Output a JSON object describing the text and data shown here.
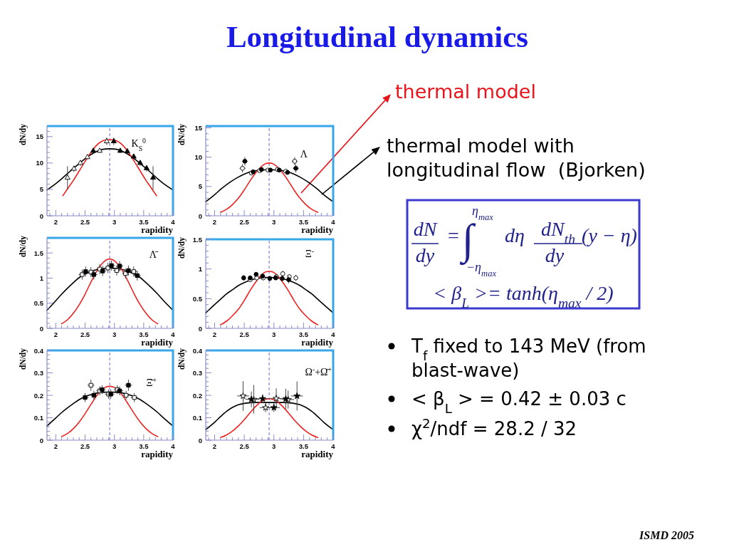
{
  "chart_data": [
    {
      "type": "other",
      "title": "Longitudinal dynamics",
      "annotations": [
        "thermal model",
        "thermal model with longitudinal flow  (Bjorken)",
        "dN",
        "dy",
        "=",
        "∫",
        "η$_{max}$",
        "−η$_{max}$",
        "dη",
        "dN$_{th}$",
        "dy",
        "(y − η)",
        "< β$_{L}$ >= tanh(η$_{max}$ / 2)",
        "T$_{f}$ fixed to 143 MeV (from blast-wave)",
        "< β$_{L}$ > = 0.42 ± 0.03 c",
        "χ$^{2}$/ndf = 28.2 / 32",
        "ISMD 2005"
      ]
    },
    {
      "type": "scatter",
      "annotations": [
        "K$_{S}$$^{0}$"
      ],
      "xlabel": "rapidity",
      "ylabel": "dN/dy",
      "xlim": [
        1.85,
        4
      ],
      "ylim": [
        0,
        17
      ],
      "xticks": [
        {
          "value": 1.9,
          "label": null
        },
        2,
        {
          "value": 2.1,
          "label": null
        },
        {
          "value": 2.2,
          "label": null
        },
        {
          "value": 2.3,
          "label": null
        },
        {
          "value": 2.4,
          "label": null
        },
        2.5,
        {
          "value": 2.6,
          "label": null
        },
        {
          "value": 2.7,
          "label": null
        },
        {
          "value": 2.8,
          "label": null
        },
        {
          "value": 2.9,
          "label": null
        },
        3,
        {
          "value": 3.1,
          "label": null
        },
        {
          "value": 3.2,
          "label": null
        },
        {
          "value": 3.3,
          "label": null
        },
        {
          "value": 3.4,
          "label": null
        },
        3.5,
        {
          "value": 3.6,
          "label": null
        },
        {
          "value": 3.7,
          "label": null
        },
        {
          "value": 3.8,
          "label": null
        },
        {
          "value": 3.9,
          "label": null
        },
        4
      ],
      "yticks": [
        0,
        {
          "value": 1,
          "label": null
        },
        {
          "value": 2,
          "label": null
        },
        {
          "value": 3,
          "label": null
        },
        {
          "value": 4,
          "label": null
        },
        5,
        {
          "value": 6,
          "label": null
        },
        {
          "value": 7,
          "label": null
        },
        {
          "value": 8,
          "label": null
        },
        {
          "value": 9,
          "label": null
        },
        10,
        {
          "value": 11,
          "label": null
        },
        {
          "value": 12,
          "label": null
        },
        {
          "value": 13,
          "label": null
        },
        {
          "value": 14,
          "label": null
        },
        15,
        {
          "value": 16,
          "label": null
        }
      ],
      "ref_lines": [
        {
          "axis": "x",
          "value": 2.92,
          "color": "#6666dd",
          "line_style": "dashed"
        }
      ],
      "series": [
        {
          "type": "line",
          "color": "#000000",
          "x": [
            1.85,
            2,
            2.1,
            2.2,
            2.3,
            2.4,
            2.5,
            2.6,
            2.7,
            2.8,
            2.92,
            3.04,
            3.14,
            3.24,
            3.34,
            3.44,
            3.54,
            3.64,
            3.74,
            3.84,
            4
          ],
          "values": [
            4.9,
            6.1,
            7.0,
            8.0,
            9.0,
            9.9,
            10.8,
            11.6,
            12.2,
            12.6,
            12.7,
            12.6,
            12.2,
            11.6,
            10.8,
            9.9,
            9.0,
            8.0,
            7.0,
            6.1,
            4.9
          ]
        },
        {
          "type": "line",
          "color": "#ee2222",
          "x": [
            2.12,
            2.2,
            2.3,
            2.4,
            2.5,
            2.6,
            2.7,
            2.8,
            2.86,
            2.92,
            2.98,
            3.04,
            3.14,
            3.24,
            3.34,
            3.44,
            3.54,
            3.64,
            3.72
          ],
          "values": [
            3.8,
            5.1,
            6.7,
            8.5,
            10.3,
            12.0,
            13.4,
            14.2,
            14.4,
            14.4,
            14.4,
            14.2,
            13.4,
            12.0,
            10.3,
            8.5,
            6.7,
            5.1,
            3.8
          ]
        },
        {
          "type": "scatter",
          "marker": "triangle",
          "color": "#ffffff",
          "x": [
            2.2,
            2.31,
            2.42,
            2.54,
            2.75,
            2.87
          ],
          "values": [
            7.2,
            8.9,
            10.0,
            11.1,
            12.3,
            14.1
          ],
          "errors": [
            2.2,
            0.6,
            0.5,
            0.4,
            0.4,
            0.7
          ]
        },
        {
          "type": "scatter",
          "marker": "triangle",
          "color": "#000000",
          "x": [
            2.64,
            2.99,
            3.1,
            3.22,
            3.33,
            3.44,
            3.55,
            3.66
          ],
          "values": [
            12.3,
            14.1,
            12.3,
            12.2,
            11.2,
            10.0,
            9.0,
            7.2
          ],
          "errors": [
            0.4,
            0.7,
            0.4,
            0.4,
            0.4,
            0.5,
            0.6,
            2.2
          ]
        }
      ]
    },
    {
      "type": "scatter",
      "annotations": [
        "Λ"
      ],
      "xlabel": "rapidity",
      "ylabel": "dN/dy",
      "xlim": [
        1.85,
        4
      ],
      "ylim": [
        0,
        15.3
      ],
      "xticks": [
        {
          "value": 1.9,
          "label": null
        },
        2,
        {
          "value": 2.1,
          "label": null
        },
        {
          "value": 2.2,
          "label": null
        },
        {
          "value": 2.3,
          "label": null
        },
        {
          "value": 2.4,
          "label": null
        },
        2.5,
        {
          "value": 2.6,
          "label": null
        },
        {
          "value": 2.7,
          "label": null
        },
        {
          "value": 2.8,
          "label": null
        },
        {
          "value": 2.9,
          "label": null
        },
        3,
        {
          "value": 3.1,
          "label": null
        },
        {
          "value": 3.2,
          "label": null
        },
        {
          "value": 3.3,
          "label": null
        },
        {
          "value": 3.4,
          "label": null
        },
        3.5,
        {
          "value": 3.6,
          "label": null
        },
        {
          "value": 3.7,
          "label": null
        },
        {
          "value": 3.8,
          "label": null
        },
        {
          "value": 3.9,
          "label": null
        },
        4
      ],
      "yticks": [
        0,
        {
          "value": 1,
          "label": null
        },
        {
          "value": 2,
          "label": null
        },
        {
          "value": 3,
          "label": null
        },
        {
          "value": 4,
          "label": null
        },
        5,
        {
          "value": 6,
          "label": null
        },
        {
          "value": 7,
          "label": null
        },
        {
          "value": 8,
          "label": null
        },
        {
          "value": 9,
          "label": null
        },
        10,
        {
          "value": 11,
          "label": null
        },
        {
          "value": 12,
          "label": null
        },
        {
          "value": 13,
          "label": null
        },
        {
          "value": 14,
          "label": null
        },
        15
      ],
      "ref_lines": [
        {
          "axis": "x",
          "value": 2.92,
          "color": "#6666dd",
          "line_style": "dashed"
        }
      ],
      "series": [
        {
          "type": "line",
          "color": "#000000",
          "x": [
            1.85,
            2,
            2.1,
            2.2,
            2.3,
            2.4,
            2.5,
            2.6,
            2.7,
            2.8,
            2.92,
            3.04,
            3.14,
            3.24,
            3.34,
            3.44,
            3.54,
            3.64,
            3.74,
            3.84,
            4
          ],
          "values": [
            2.4,
            3.6,
            4.5,
            5.3,
            6.0,
            6.6,
            7.1,
            7.5,
            7.7,
            7.8,
            7.9,
            7.8,
            7.7,
            7.5,
            7.1,
            6.6,
            6.0,
            5.3,
            4.5,
            3.6,
            2.4
          ]
        },
        {
          "type": "line",
          "color": "#ee2222",
          "x": [
            2.1,
            2.2,
            2.3,
            2.4,
            2.5,
            2.6,
            2.7,
            2.8,
            2.86,
            2.92,
            2.98,
            3.04,
            3.14,
            3.24,
            3.34,
            3.44,
            3.54,
            3.64,
            3.74
          ],
          "values": [
            0.6,
            1.1,
            1.9,
            3.0,
            4.4,
            6.0,
            7.4,
            8.5,
            8.9,
            9.0,
            8.9,
            8.5,
            7.4,
            6.0,
            4.4,
            3.0,
            1.9,
            1.1,
            0.6
          ]
        },
        {
          "type": "scatter",
          "marker": "circle",
          "color": "#ffffff",
          "x": [
            2.47,
            2.62,
            2.76,
            2.9,
            3.06,
            3.2,
            3.35
          ],
          "values": [
            8.1,
            7.3,
            7.7,
            7.8,
            7.9,
            7.6,
            9.3
          ],
          "errors": [
            0.7,
            0.3,
            0.3,
            0.3,
            0.3,
            0.3,
            0.7
          ],
          "xerrors": [
            0.05,
            null,
            null,
            null,
            null,
            null,
            0.05
          ]
        },
        {
          "type": "scatter",
          "marker": "circle",
          "color": "#000000",
          "x": [
            2.51,
            2.65,
            2.79,
            2.94,
            3.09,
            3.23,
            3.37
          ],
          "values": [
            9.3,
            7.5,
            7.9,
            7.8,
            7.8,
            7.4,
            8.1
          ],
          "errors": [
            0.7,
            0.3,
            0.3,
            0.3,
            0.3,
            0.3,
            0.7
          ],
          "xerrors": [
            0.05,
            null,
            null,
            null,
            null,
            null,
            0.05
          ]
        }
      ]
    },
    {
      "type": "scatter",
      "annotations": [
        "Λ̄"
      ],
      "xlabel": "rapidity",
      "ylabel": "dN/dy",
      "xlim": [
        1.85,
        4
      ],
      "ylim": [
        0,
        1.8
      ],
      "xticks": [
        {
          "value": 1.9,
          "label": null
        },
        2,
        {
          "value": 2.1,
          "label": null
        },
        {
          "value": 2.2,
          "label": null
        },
        {
          "value": 2.3,
          "label": null
        },
        {
          "value": 2.4,
          "label": null
        },
        2.5,
        {
          "value": 2.6,
          "label": null
        },
        {
          "value": 2.7,
          "label": null
        },
        {
          "value": 2.8,
          "label": null
        },
        {
          "value": 2.9,
          "label": null
        },
        3,
        {
          "value": 3.1,
          "label": null
        },
        {
          "value": 3.2,
          "label": null
        },
        {
          "value": 3.3,
          "label": null
        },
        {
          "value": 3.4,
          "label": null
        },
        3.5,
        {
          "value": 3.6,
          "label": null
        },
        {
          "value": 3.7,
          "label": null
        },
        {
          "value": 3.8,
          "label": null
        },
        {
          "value": 3.9,
          "label": null
        },
        4
      ],
      "yticks": [
        0,
        {
          "value": 0.1,
          "label": null
        },
        {
          "value": 0.2,
          "label": null
        },
        {
          "value": 0.3,
          "label": null
        },
        {
          "value": 0.4,
          "label": null
        },
        0.5,
        {
          "value": 0.6,
          "label": null
        },
        {
          "value": 0.7,
          "label": null
        },
        {
          "value": 0.8,
          "label": null
        },
        {
          "value": 0.9,
          "label": null
        },
        1,
        {
          "value": 1.1,
          "label": null
        },
        {
          "value": 1.2,
          "label": null
        },
        {
          "value": 1.3,
          "label": null
        },
        {
          "value": 1.4,
          "label": null
        },
        1.5,
        {
          "value": 1.6,
          "label": null
        },
        {
          "value": 1.7,
          "label": null
        }
      ],
      "ref_lines": [
        {
          "axis": "x",
          "value": 2.92,
          "color": "#6666dd",
          "line_style": "dashed"
        }
      ],
      "series": [
        {
          "type": "line",
          "color": "#000000",
          "x": [
            1.85,
            2,
            2.1,
            2.2,
            2.3,
            2.4,
            2.5,
            2.6,
            2.7,
            2.8,
            2.92,
            3.04,
            3.14,
            3.24,
            3.34,
            3.44,
            3.54,
            3.64,
            3.74,
            3.84,
            4
          ],
          "values": [
            0.36,
            0.55,
            0.68,
            0.8,
            0.91,
            1.01,
            1.08,
            1.13,
            1.17,
            1.19,
            1.2,
            1.19,
            1.17,
            1.13,
            1.08,
            1.01,
            0.91,
            0.8,
            0.68,
            0.55,
            0.36
          ]
        },
        {
          "type": "line",
          "color": "#ee2222",
          "x": [
            2.1,
            2.2,
            2.3,
            2.4,
            2.5,
            2.6,
            2.7,
            2.8,
            2.86,
            2.92,
            2.98,
            3.04,
            3.14,
            3.24,
            3.34,
            3.44,
            3.54,
            3.64,
            3.74
          ],
          "values": [
            0.09,
            0.17,
            0.3,
            0.47,
            0.68,
            0.92,
            1.14,
            1.3,
            1.36,
            1.38,
            1.36,
            1.3,
            1.14,
            0.92,
            0.68,
            0.47,
            0.3,
            0.17,
            0.09
          ]
        },
        {
          "type": "scatter",
          "marker": "square",
          "color": "#ffffff",
          "x": [
            2.45,
            2.6,
            2.75,
            2.89,
            3.04,
            3.19,
            3.33
          ],
          "values": [
            1.07,
            1.12,
            1.18,
            1.2,
            1.15,
            1.09,
            1.13
          ],
          "errors": [
            0.1,
            0.1,
            0.1,
            0.1,
            0.1,
            0.1,
            0.1
          ],
          "xerrors": [
            0.06,
            0.06,
            0.06,
            0.06,
            0.06,
            0.06,
            0.06
          ]
        },
        {
          "type": "scatter",
          "marker": "square",
          "color": "#000000",
          "x": [
            2.51,
            2.65,
            2.8,
            2.95,
            3.09,
            3.24,
            3.39
          ],
          "values": [
            1.13,
            1.07,
            1.14,
            1.25,
            1.24,
            1.15,
            1.05
          ],
          "errors": [
            0.1,
            0.1,
            0.1,
            0.1,
            0.1,
            0.1,
            0.1
          ],
          "xerrors": [
            0.06,
            0.06,
            0.06,
            0.06,
            0.06,
            0.06,
            0.06
          ]
        }
      ]
    },
    {
      "type": "scatter",
      "annotations": [
        "Ξ$^{-}$"
      ],
      "xlabel": "rapidity",
      "ylabel": "dN/dy",
      "xlim": [
        1.85,
        4
      ],
      "ylim": [
        0,
        1.5
      ],
      "xticks": [
        {
          "value": 1.9,
          "label": null
        },
        2,
        {
          "value": 2.1,
          "label": null
        },
        {
          "value": 2.2,
          "label": null
        },
        {
          "value": 2.3,
          "label": null
        },
        {
          "value": 2.4,
          "label": null
        },
        2.5,
        {
          "value": 2.6,
          "label": null
        },
        {
          "value": 2.7,
          "label": null
        },
        {
          "value": 2.8,
          "label": null
        },
        {
          "value": 2.9,
          "label": null
        },
        3,
        {
          "value": 3.1,
          "label": null
        },
        {
          "value": 3.2,
          "label": null
        },
        {
          "value": 3.3,
          "label": null
        },
        {
          "value": 3.4,
          "label": null
        },
        3.5,
        {
          "value": 3.6,
          "label": null
        },
        {
          "value": 3.7,
          "label": null
        },
        {
          "value": 3.8,
          "label": null
        },
        {
          "value": 3.9,
          "label": null
        },
        4
      ],
      "yticks": [
        0,
        {
          "value": 0.1,
          "label": null
        },
        {
          "value": 0.2,
          "label": null
        },
        {
          "value": 0.3,
          "label": null
        },
        {
          "value": 0.4,
          "label": null
        },
        0.5,
        {
          "value": 0.6,
          "label": null
        },
        {
          "value": 0.7,
          "label": null
        },
        {
          "value": 0.8,
          "label": null
        },
        {
          "value": 0.9,
          "label": null
        },
        1,
        {
          "value": 1.1,
          "label": null
        },
        {
          "value": 1.2,
          "label": null
        },
        {
          "value": 1.3,
          "label": null
        },
        {
          "value": 1.4,
          "label": null
        },
        1.5
      ],
      "ref_lines": [
        {
          "axis": "x",
          "value": 2.92,
          "color": "#6666dd",
          "line_style": "dashed"
        }
      ],
      "series": [
        {
          "type": "line",
          "color": "#000000",
          "x": [
            1.85,
            2,
            2.1,
            2.2,
            2.3,
            2.4,
            2.5,
            2.6,
            2.7,
            2.8,
            2.92,
            3.04,
            3.14,
            3.24,
            3.34,
            3.44,
            3.54,
            3.64,
            3.74,
            3.84,
            4
          ],
          "values": [
            0.26,
            0.4,
            0.49,
            0.58,
            0.65,
            0.72,
            0.77,
            0.81,
            0.84,
            0.85,
            0.86,
            0.85,
            0.84,
            0.81,
            0.77,
            0.72,
            0.65,
            0.58,
            0.49,
            0.4,
            0.26
          ]
        },
        {
          "type": "line",
          "color": "#ee2222",
          "x": [
            2.1,
            2.2,
            2.3,
            2.4,
            2.5,
            2.6,
            2.7,
            2.8,
            2.86,
            2.92,
            2.98,
            3.04,
            3.14,
            3.24,
            3.34,
            3.44,
            3.54,
            3.64,
            3.74
          ],
          "values": [
            0.06,
            0.12,
            0.21,
            0.32,
            0.47,
            0.64,
            0.79,
            0.91,
            0.95,
            0.96,
            0.95,
            0.91,
            0.79,
            0.64,
            0.47,
            0.32,
            0.21,
            0.12,
            0.06
          ]
        },
        {
          "type": "scatter",
          "marker": "circle",
          "color": "#ffffff",
          "x": [
            2.6,
            2.71,
            2.82,
            3.04,
            3.15,
            3.26,
            3.37
          ],
          "values": [
            0.82,
            0.85,
            0.85,
            0.87,
            0.92,
            0.87,
            0.85
          ],
          "errors": [
            0.04,
            0.04,
            0.04,
            0.04,
            0.05,
            0.04,
            0.05
          ]
        },
        {
          "type": "scatter",
          "marker": "circle",
          "color": "#000000",
          "x": [
            2.49,
            2.6,
            2.7,
            2.81,
            2.93,
            3.03,
            3.14,
            3.25
          ],
          "values": [
            0.85,
            0.85,
            0.91,
            0.88,
            0.84,
            0.85,
            0.84,
            0.82
          ],
          "errors": [
            0.05,
            0.04,
            0.04,
            0.04,
            0.04,
            0.04,
            0.05,
            0.06
          ]
        }
      ]
    },
    {
      "type": "scatter",
      "annotations": [
        "Ξ̄$^{+}$"
      ],
      "xlabel": "rapidity",
      "ylabel": "dN/dy",
      "xlim": [
        1.85,
        4
      ],
      "ylim": [
        0,
        0.4
      ],
      "xticks": [
        {
          "value": 1.9,
          "label": null
        },
        2,
        {
          "value": 2.1,
          "label": null
        },
        {
          "value": 2.2,
          "label": null
        },
        {
          "value": 2.3,
          "label": null
        },
        {
          "value": 2.4,
          "label": null
        },
        2.5,
        {
          "value": 2.6,
          "label": null
        },
        {
          "value": 2.7,
          "label": null
        },
        {
          "value": 2.8,
          "label": null
        },
        {
          "value": 2.9,
          "label": null
        },
        3,
        {
          "value": 3.1,
          "label": null
        },
        {
          "value": 3.2,
          "label": null
        },
        {
          "value": 3.3,
          "label": null
        },
        {
          "value": 3.4,
          "label": null
        },
        3.5,
        {
          "value": 3.6,
          "label": null
        },
        {
          "value": 3.7,
          "label": null
        },
        {
          "value": 3.8,
          "label": null
        },
        {
          "value": 3.9,
          "label": null
        },
        4
      ],
      "yticks": [
        0,
        {
          "value": 0.02,
          "label": null
        },
        {
          "value": 0.04,
          "label": null
        },
        {
          "value": 0.06,
          "label": null
        },
        {
          "value": 0.08,
          "label": null
        },
        0.1,
        {
          "value": 0.12,
          "label": null
        },
        {
          "value": 0.14,
          "label": null
        },
        {
          "value": 0.16,
          "label": null
        },
        {
          "value": 0.18,
          "label": null
        },
        0.2,
        {
          "value": 0.22,
          "label": null
        },
        {
          "value": 0.24,
          "label": null
        },
        {
          "value": 0.26,
          "label": null
        },
        {
          "value": 0.28,
          "label": null
        },
        0.3,
        {
          "value": 0.32,
          "label": null
        },
        {
          "value": 0.34,
          "label": null
        },
        {
          "value": 0.36,
          "label": null
        },
        {
          "value": 0.38,
          "label": null
        },
        0.4
      ],
      "ref_lines": [
        {
          "axis": "x",
          "value": 2.92,
          "color": "#6666dd",
          "line_style": "dashed"
        }
      ],
      "series": [
        {
          "type": "line",
          "color": "#000000",
          "x": [
            1.85,
            2,
            2.1,
            2.2,
            2.3,
            2.4,
            2.5,
            2.6,
            2.7,
            2.8,
            2.92,
            3.04,
            3.14,
            3.24,
            3.34,
            3.44,
            3.54,
            3.64,
            3.74,
            3.84,
            4
          ],
          "values": [
            0.063,
            0.099,
            0.123,
            0.144,
            0.163,
            0.181,
            0.194,
            0.203,
            0.21,
            0.213,
            0.215,
            0.213,
            0.21,
            0.203,
            0.194,
            0.181,
            0.163,
            0.144,
            0.123,
            0.099,
            0.063
          ]
        },
        {
          "type": "line",
          "color": "#ee2222",
          "x": [
            2.1,
            2.2,
            2.3,
            2.4,
            2.5,
            2.6,
            2.7,
            2.8,
            2.86,
            2.92,
            2.98,
            3.04,
            3.14,
            3.24,
            3.34,
            3.44,
            3.54,
            3.64,
            3.74
          ],
          "values": [
            0.016,
            0.03,
            0.051,
            0.081,
            0.118,
            0.159,
            0.198,
            0.227,
            0.237,
            0.24,
            0.237,
            0.227,
            0.198,
            0.159,
            0.118,
            0.081,
            0.051,
            0.03,
            0.016
          ]
        },
        {
          "type": "scatter",
          "marker": "square",
          "color": "#ffffff",
          "x": [
            2.6,
            2.75,
            2.9,
            3.05,
            3.2,
            3.34
          ],
          "values": [
            0.245,
            0.22,
            0.205,
            0.225,
            0.2,
            0.19
          ],
          "errors": [
            0.025,
            0.02,
            0.02,
            0.02,
            0.02,
            0.02
          ],
          "xerrors": [
            0.06,
            0.06,
            0.06,
            0.06,
            0.06,
            0.06
          ]
        },
        {
          "type": "scatter",
          "marker": "square",
          "color": "#000000",
          "x": [
            2.5,
            2.65,
            2.79,
            2.94,
            3.09,
            3.24
          ],
          "values": [
            0.19,
            0.2,
            0.225,
            0.205,
            0.22,
            0.245
          ],
          "errors": [
            0.02,
            0.02,
            0.02,
            0.02,
            0.02,
            0.025
          ],
          "xerrors": [
            0.06,
            0.06,
            0.06,
            0.06,
            0.06,
            0.06
          ]
        }
      ]
    },
    {
      "type": "scatter",
      "annotations": [
        "Ω$^{-}$+Ω̄$^{+}$"
      ],
      "xlabel": "rapidity",
      "ylabel": "dN/dy",
      "xlim": [
        1.85,
        4
      ],
      "ylim": [
        0,
        0.4
      ],
      "xticks": [
        {
          "value": 1.9,
          "label": null
        },
        2,
        {
          "value": 2.1,
          "label": null
        },
        {
          "value": 2.2,
          "label": null
        },
        {
          "value": 2.3,
          "label": null
        },
        {
          "value": 2.4,
          "label": null
        },
        2.5,
        {
          "value": 2.6,
          "label": null
        },
        {
          "value": 2.7,
          "label": null
        },
        {
          "value": 2.8,
          "label": null
        },
        {
          "value": 2.9,
          "label": null
        },
        3,
        {
          "value": 3.1,
          "label": null
        },
        {
          "value": 3.2,
          "label": null
        },
        {
          "value": 3.3,
          "label": null
        },
        {
          "value": 3.4,
          "label": null
        },
        3.5,
        {
          "value": 3.6,
          "label": null
        },
        {
          "value": 3.7,
          "label": null
        },
        {
          "value": 3.8,
          "label": null
        },
        {
          "value": 3.9,
          "label": null
        },
        4
      ],
      "yticks": [
        0,
        {
          "value": 0.02,
          "label": null
        },
        {
          "value": 0.04,
          "label": null
        },
        {
          "value": 0.06,
          "label": null
        },
        {
          "value": 0.08,
          "label": null
        },
        0.1,
        {
          "value": 0.12,
          "label": null
        },
        {
          "value": 0.14,
          "label": null
        },
        {
          "value": 0.16,
          "label": null
        },
        {
          "value": 0.18,
          "label": null
        },
        0.2,
        {
          "value": 0.22,
          "label": null
        },
        {
          "value": 0.24,
          "label": null
        },
        {
          "value": 0.26,
          "label": null
        },
        {
          "value": 0.28,
          "label": null
        },
        0.3,
        {
          "value": 0.32,
          "label": null
        },
        {
          "value": 0.34,
          "label": null
        },
        {
          "value": 0.36,
          "label": null
        },
        {
          "value": 0.38,
          "label": null
        },
        0.4
      ],
      "ref_lines": [
        {
          "axis": "x",
          "value": 2.92,
          "color": "#6666dd",
          "line_style": "dashed"
        }
      ],
      "series": [
        {
          "type": "line",
          "color": "#000000",
          "x": [
            1.85,
            2,
            2.1,
            2.2,
            2.3,
            2.4,
            2.5,
            2.6,
            2.7,
            2.8,
            2.92,
            3.04,
            3.14,
            3.24,
            3.34,
            3.44,
            3.54,
            3.64,
            3.74,
            3.84,
            4
          ],
          "values": [
            0.047,
            0.08,
            0.105,
            0.128,
            0.146,
            0.158,
            0.164,
            0.167,
            0.168,
            0.168,
            0.168,
            0.168,
            0.168,
            0.167,
            0.164,
            0.158,
            0.146,
            0.128,
            0.105,
            0.08,
            0.047
          ]
        },
        {
          "type": "line",
          "color": "#ee2222",
          "x": [
            2.1,
            2.2,
            2.3,
            2.4,
            2.5,
            2.6,
            2.7,
            2.8,
            2.86,
            2.92,
            2.98,
            3.04,
            3.14,
            3.24,
            3.34,
            3.44,
            3.54,
            3.64,
            3.74
          ],
          "values": [
            0.012,
            0.023,
            0.04,
            0.063,
            0.091,
            0.123,
            0.152,
            0.175,
            0.182,
            0.185,
            0.182,
            0.175,
            0.152,
            0.123,
            0.091,
            0.063,
            0.04,
            0.023,
            0.012
          ]
        },
        {
          "type": "scatter",
          "marker": "star",
          "color": "#ffffff",
          "x": [
            2.48,
            2.66,
            2.86,
            3.04,
            3.24
          ],
          "values": [
            0.197,
            0.182,
            0.145,
            0.186,
            0.181
          ],
          "errors": [
            0.066,
            0.064,
            0.02,
            0.045,
            0.04
          ],
          "xerrors": [
            0.1,
            0.1,
            0.1,
            0.1,
            0.1
          ]
        },
        {
          "type": "scatter",
          "marker": "star",
          "color": "#000000",
          "x": [
            2.62,
            2.81,
            3.0,
            3.2,
            3.39
          ],
          "values": [
            0.182,
            0.185,
            0.145,
            0.184,
            0.197
          ],
          "errors": [
            0.035,
            0.02,
            0.02,
            0.045,
            0.065
          ],
          "xerrors": [
            0.1,
            0.1,
            0.1,
            0.1,
            0.1
          ]
        }
      ]
    }
  ]
}
